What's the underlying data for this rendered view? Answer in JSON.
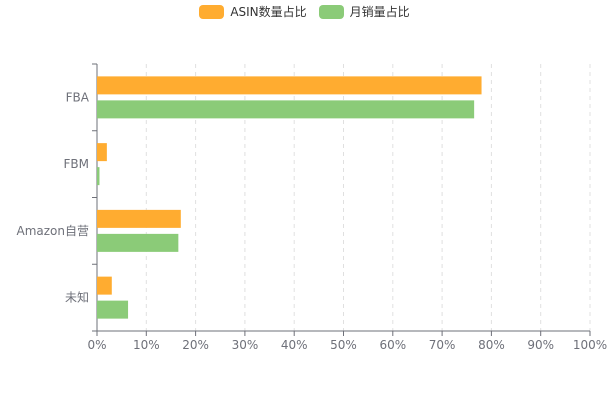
{
  "chart_data": {
    "type": "bar",
    "orientation": "horizontal",
    "categories": [
      "FBA",
      "FBM",
      "Amazon自营",
      "未知"
    ],
    "series": [
      {
        "name": "ASIN数量占比",
        "values": [
          78,
          2,
          17,
          3
        ],
        "color": "#ffac30"
      },
      {
        "name": "月销量占比",
        "values": [
          76.5,
          0.5,
          16.5,
          6.3
        ],
        "color": "#8bcb78"
      }
    ],
    "x_ticks": [
      "0%",
      "10%",
      "20%",
      "30%",
      "40%",
      "50%",
      "60%",
      "70%",
      "80%",
      "90%",
      "100%"
    ],
    "xlim": [
      0,
      100
    ],
    "grid": "vertical dashed",
    "legend_position": "top-center"
  }
}
